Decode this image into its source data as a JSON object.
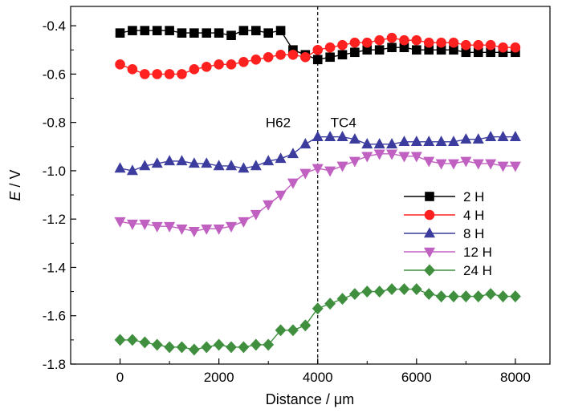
{
  "chart_data": {
    "type": "line",
    "xlabel": "Distance / μm",
    "ylabel_italic": "E",
    "ylabel_rest": " / V",
    "xlim": [
      -1000,
      8700
    ],
    "ylim": [
      -1.8,
      -0.32
    ],
    "xticks": [
      0,
      2000,
      4000,
      6000,
      8000
    ],
    "xtick_labels": [
      "0",
      "2000",
      "4000",
      "6000",
      "8000"
    ],
    "yticks": [
      -0.4,
      -0.6,
      -0.8,
      -1.0,
      -1.2,
      -1.4,
      -1.6,
      -1.8
    ],
    "ytick_labels": [
      "-0.4",
      "-0.6",
      "-0.8",
      "-1.0",
      "-1.2",
      "-1.4",
      "-1.6",
      "-1.8"
    ],
    "divider_x": 4000,
    "annotations": [
      {
        "text": "H62",
        "x": 3200,
        "y": -0.8
      },
      {
        "text": "TC4",
        "x": 4520,
        "y": -0.8
      }
    ],
    "legend_position": "right-center",
    "series": [
      {
        "name": "2 H",
        "color": "#000000",
        "marker": "square",
        "x": [
          0,
          250,
          500,
          750,
          1000,
          1250,
          1500,
          1750,
          2000,
          2250,
          2500,
          2750,
          3000,
          3250,
          3500,
          3750,
          4000,
          4250,
          4500,
          4750,
          5000,
          5250,
          5500,
          5750,
          6000,
          6250,
          6500,
          6750,
          7000,
          7250,
          7500,
          7750,
          8000
        ],
        "y": [
          -0.43,
          -0.42,
          -0.42,
          -0.42,
          -0.42,
          -0.43,
          -0.43,
          -0.43,
          -0.43,
          -0.44,
          -0.42,
          -0.42,
          -0.43,
          -0.42,
          -0.5,
          -0.52,
          -0.54,
          -0.53,
          -0.52,
          -0.51,
          -0.5,
          -0.5,
          -0.49,
          -0.49,
          -0.5,
          -0.5,
          -0.5,
          -0.5,
          -0.51,
          -0.51,
          -0.51,
          -0.51,
          -0.51
        ]
      },
      {
        "name": "4 H",
        "color": "#ff2020",
        "marker": "circle",
        "x": [
          0,
          250,
          500,
          750,
          1000,
          1250,
          1500,
          1750,
          2000,
          2250,
          2500,
          2750,
          3000,
          3250,
          3500,
          3750,
          4000,
          4250,
          4500,
          4750,
          5000,
          5250,
          5500,
          5750,
          6000,
          6250,
          6500,
          6750,
          7000,
          7250,
          7500,
          7750,
          8000
        ],
        "y": [
          -0.56,
          -0.58,
          -0.6,
          -0.6,
          -0.6,
          -0.6,
          -0.58,
          -0.57,
          -0.56,
          -0.56,
          -0.55,
          -0.54,
          -0.53,
          -0.52,
          -0.52,
          -0.53,
          -0.5,
          -0.49,
          -0.48,
          -0.47,
          -0.47,
          -0.46,
          -0.45,
          -0.46,
          -0.46,
          -0.47,
          -0.47,
          -0.47,
          -0.48,
          -0.48,
          -0.48,
          -0.49,
          -0.49
        ]
      },
      {
        "name": "8 H",
        "color": "#3c3c9e",
        "marker": "triangle-up",
        "x": [
          0,
          250,
          500,
          750,
          1000,
          1250,
          1500,
          1750,
          2000,
          2250,
          2500,
          2750,
          3000,
          3250,
          3500,
          3750,
          4000,
          4250,
          4500,
          4750,
          5000,
          5250,
          5500,
          5750,
          6000,
          6250,
          6500,
          6750,
          7000,
          7250,
          7500,
          7750,
          8000
        ],
        "y": [
          -0.99,
          -1.0,
          -0.98,
          -0.97,
          -0.96,
          -0.96,
          -0.97,
          -0.97,
          -0.98,
          -0.98,
          -0.99,
          -0.98,
          -0.96,
          -0.95,
          -0.93,
          -0.89,
          -0.86,
          -0.86,
          -0.86,
          -0.87,
          -0.89,
          -0.89,
          -0.89,
          -0.88,
          -0.88,
          -0.88,
          -0.88,
          -0.88,
          -0.87,
          -0.87,
          -0.86,
          -0.86,
          -0.86
        ]
      },
      {
        "name": "12 H",
        "color": "#c060c0",
        "marker": "triangle-down",
        "x": [
          0,
          250,
          500,
          750,
          1000,
          1250,
          1500,
          1750,
          2000,
          2250,
          2500,
          2750,
          3000,
          3250,
          3500,
          3750,
          4000,
          4250,
          4500,
          4750,
          5000,
          5250,
          5500,
          5750,
          6000,
          6250,
          6500,
          6750,
          7000,
          7250,
          7500,
          7750,
          8000
        ],
        "y": [
          -1.21,
          -1.22,
          -1.22,
          -1.23,
          -1.23,
          -1.24,
          -1.25,
          -1.24,
          -1.24,
          -1.23,
          -1.21,
          -1.18,
          -1.14,
          -1.1,
          -1.05,
          -1.01,
          -0.99,
          -1.0,
          -0.98,
          -0.96,
          -0.94,
          -0.93,
          -0.93,
          -0.94,
          -0.94,
          -0.96,
          -0.97,
          -0.97,
          -0.96,
          -0.97,
          -0.97,
          -0.98,
          -0.98
        ]
      },
      {
        "name": "24 H",
        "color": "#3f8f3f",
        "marker": "diamond",
        "x": [
          0,
          250,
          500,
          750,
          1000,
          1250,
          1500,
          1750,
          2000,
          2250,
          2500,
          2750,
          3000,
          3250,
          3500,
          3750,
          4000,
          4250,
          4500,
          4750,
          5000,
          5250,
          5500,
          5750,
          6000,
          6250,
          6500,
          6750,
          7000,
          7250,
          7500,
          7750,
          8000
        ],
        "y": [
          -1.7,
          -1.7,
          -1.71,
          -1.72,
          -1.73,
          -1.73,
          -1.74,
          -1.73,
          -1.72,
          -1.73,
          -1.73,
          -1.72,
          -1.72,
          -1.66,
          -1.66,
          -1.64,
          -1.57,
          -1.55,
          -1.53,
          -1.51,
          -1.5,
          -1.5,
          -1.49,
          -1.49,
          -1.49,
          -1.51,
          -1.52,
          -1.52,
          -1.52,
          -1.52,
          -1.51,
          -1.52,
          -1.52
        ]
      }
    ]
  }
}
